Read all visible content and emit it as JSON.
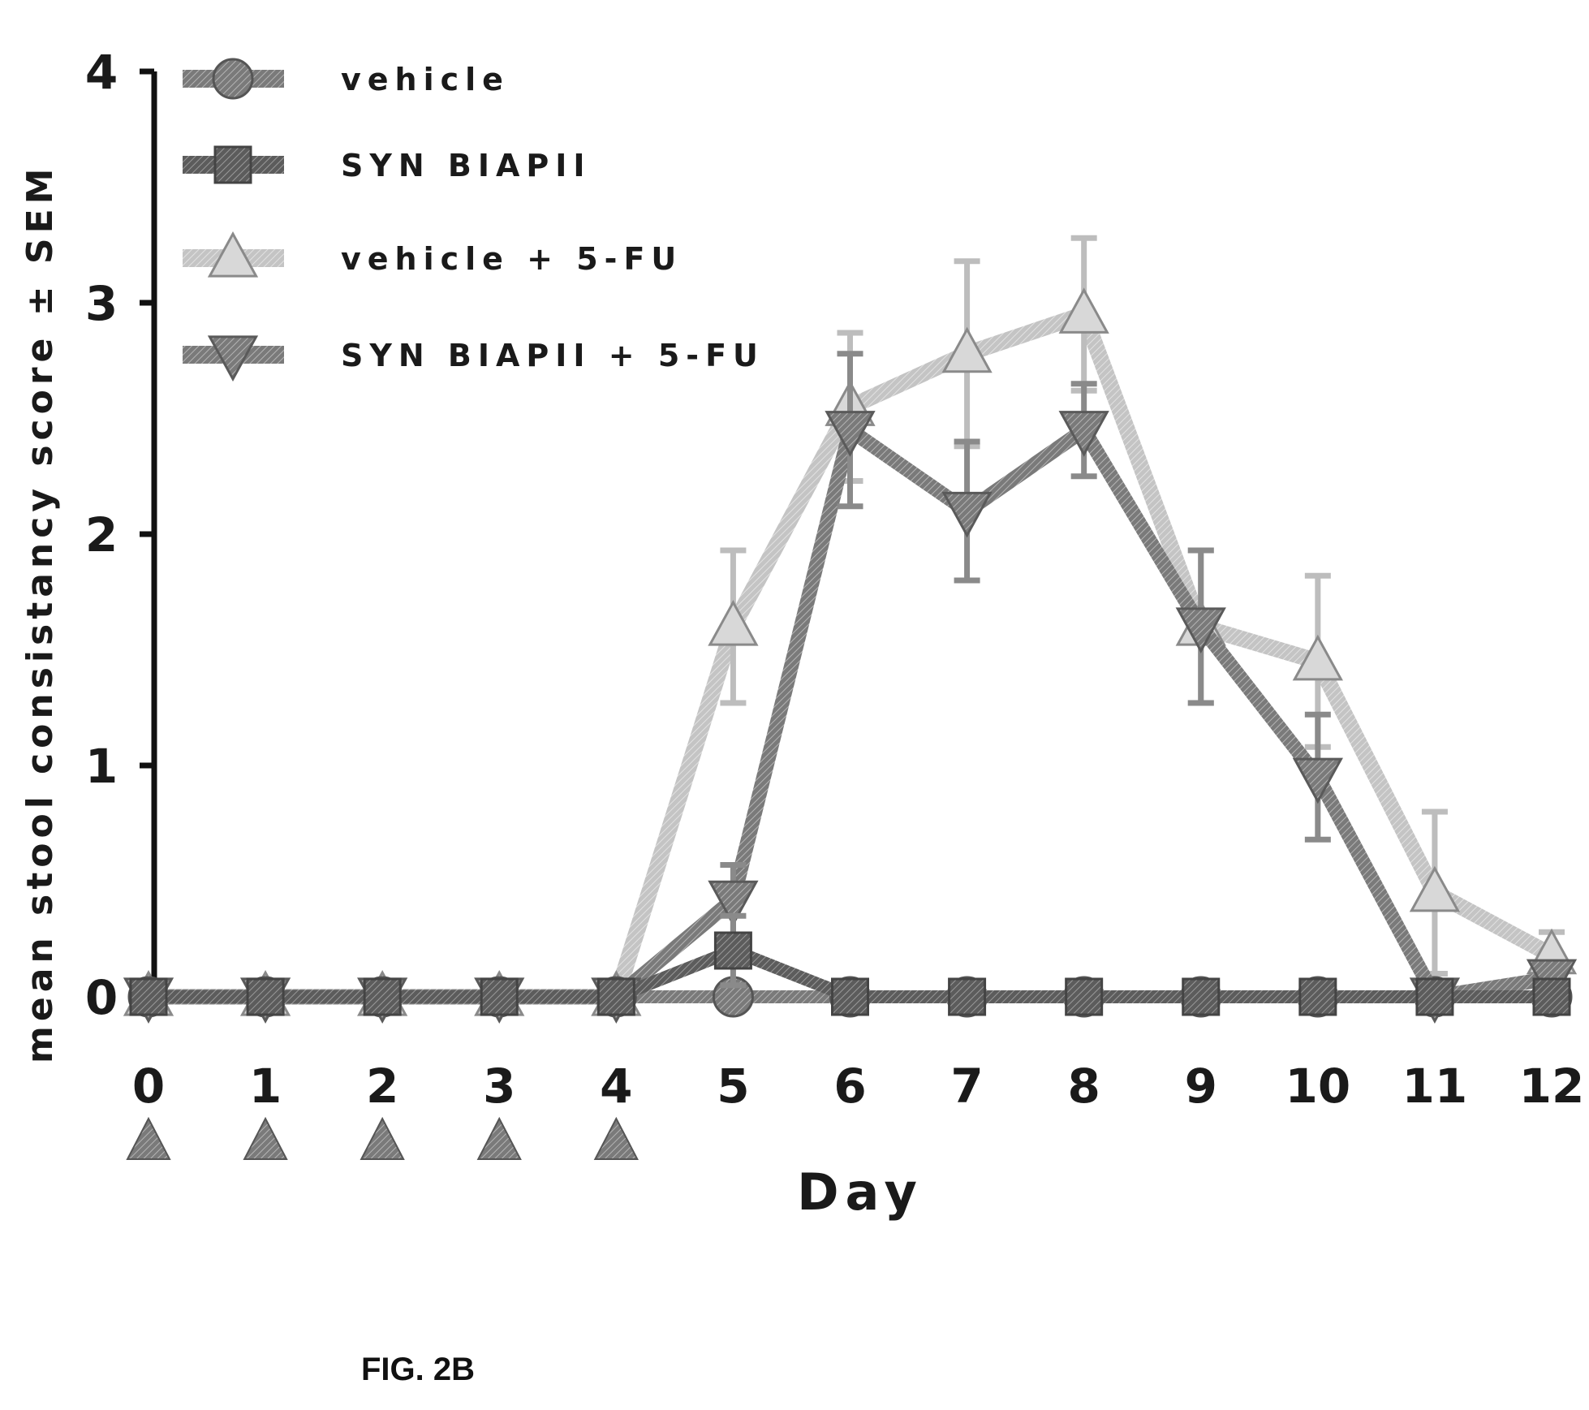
{
  "chart_data": {
    "type": "line",
    "title": "",
    "xlabel": "Day",
    "ylabel": "mean stool consistancy score ± SEM",
    "x": [
      0,
      1,
      2,
      3,
      4,
      5,
      6,
      7,
      8,
      9,
      10,
      11,
      12
    ],
    "x_tick_labels": [
      "0",
      "1",
      "2",
      "3",
      "4",
      "5",
      "6",
      "7",
      "8",
      "9",
      "10",
      "11",
      "12"
    ],
    "y_ticks": [
      "0",
      "1",
      "2",
      "3",
      "4"
    ],
    "xlim": [
      0,
      12
    ],
    "ylim": [
      0,
      4
    ],
    "grid": false,
    "legend_position": "top-left",
    "dosing_markers_days": [
      0,
      1,
      2,
      3,
      4
    ],
    "series": [
      {
        "name": "vehicle",
        "marker": "circle",
        "color": "#7a7a7a",
        "values": [
          0,
          0,
          0,
          0,
          0,
          0,
          0,
          0,
          0,
          0,
          0,
          0,
          0
        ],
        "sem": [
          0,
          0,
          0,
          0,
          0,
          0,
          0,
          0,
          0,
          0,
          0,
          0,
          0
        ]
      },
      {
        "name": "SYN BIAPII",
        "marker": "square",
        "color": "#6e6e6e",
        "values": [
          0,
          0,
          0,
          0,
          0,
          0.2,
          0,
          0,
          0,
          0,
          0,
          0,
          0
        ],
        "sem": [
          0,
          0,
          0,
          0,
          0,
          0.15,
          0,
          0,
          0,
          0,
          0,
          0,
          0
        ]
      },
      {
        "name": "vehicle + 5-FU",
        "marker": "triangle-up",
        "color": "#bdbdbd",
        "values": [
          0,
          0,
          0,
          0,
          0,
          1.6,
          2.55,
          2.78,
          2.95,
          1.6,
          1.45,
          0.45,
          0.18
        ],
        "sem": [
          0,
          0,
          0,
          0,
          0,
          0.33,
          0.32,
          0.4,
          0.33,
          0.33,
          0.37,
          0.35,
          0.1
        ]
      },
      {
        "name": "SYN BIAPII + 5-FU",
        "marker": "triangle-down",
        "color": "#8a8a8a",
        "values": [
          0,
          0,
          0,
          0,
          0,
          0.42,
          2.45,
          2.1,
          2.45,
          1.6,
          0.95,
          0,
          0.08
        ],
        "sem": [
          0,
          0,
          0,
          0,
          0,
          0.15,
          0.33,
          0.3,
          0.2,
          0.33,
          0.27,
          0,
          0.05
        ]
      }
    ]
  },
  "caption": "FIG. 2B"
}
